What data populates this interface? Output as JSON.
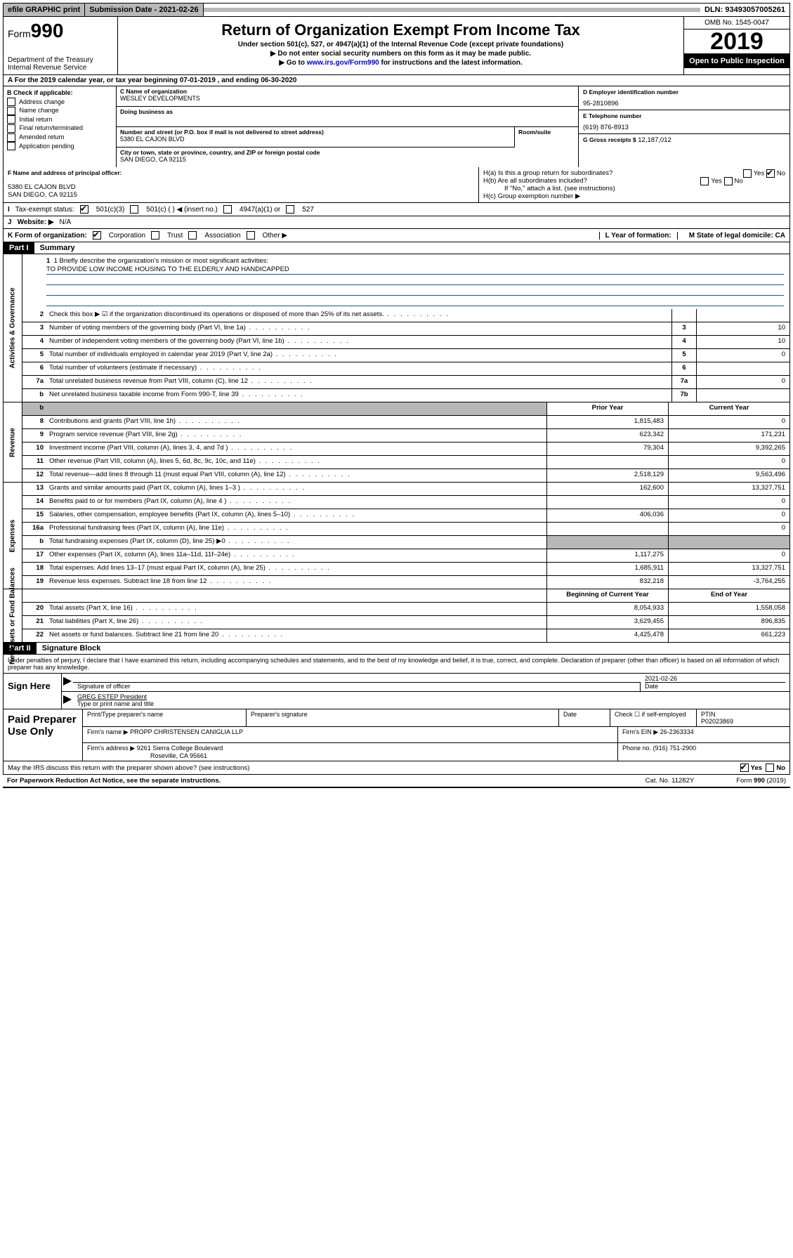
{
  "topbar": {
    "efile": "efile GRAPHIC print",
    "sub_label": "Submission Date - 2021-02-26",
    "dln": "DLN: 93493057005261"
  },
  "header": {
    "form_word": "Form",
    "form_num": "990",
    "dept": "Department of the Treasury\nInternal Revenue Service",
    "title": "Return of Organization Exempt From Income Tax",
    "subtitle": "Under section 501(c), 527, or 4947(a)(1) of the Internal Revenue Code (except private foundations)",
    "line1": "▶ Do not enter social security numbers on this form as it may be made public.",
    "line2_pre": "▶ Go to ",
    "line2_link": "www.irs.gov/Form990",
    "line2_post": " for instructions and the latest information.",
    "omb": "OMB No. 1545-0047",
    "year": "2019",
    "open": "Open to Public Inspection"
  },
  "period": {
    "text": "A   For the 2019 calendar year, or tax year beginning 07-01-2019     , and ending 06-30-2020"
  },
  "boxB": {
    "header": "B Check if applicable:",
    "items": [
      "Address change",
      "Name change",
      "Initial return",
      "Final return/terminated",
      "Amended return",
      "Application pending"
    ]
  },
  "boxC": {
    "name_label": "C Name of organization",
    "name": "WESLEY DEVELOPMENTS",
    "dba_label": "Doing business as",
    "addr_label": "Number and street (or P.O. box if mail is not delivered to street address)",
    "room_label": "Room/suite",
    "addr": "5380 EL CAJON BLVD",
    "city_label": "City or town, state or province, country, and ZIP or foreign postal code",
    "city": "SAN DIEGO, CA  92115"
  },
  "boxD": {
    "label": "D Employer identification number",
    "val": "95-2810896"
  },
  "boxE": {
    "label": "E Telephone number",
    "val": "(619) 876-8913"
  },
  "boxG": {
    "label": "G Gross receipts $",
    "val": "12,187,012"
  },
  "boxF": {
    "label": "F Name and address of principal officer:",
    "line1": "5380 EL CAJON BLVD",
    "line2": "SAN DIEGO, CA  92115"
  },
  "boxH": {
    "a": "H(a)  Is this a group return for subordinates?",
    "b": "H(b)  Are all subordinates included?",
    "bnote": "If \"No,\" attach a list. (see instructions)",
    "c": "H(c)  Group exemption number ▶"
  },
  "taxstatus": {
    "label": "Tax-exempt status:",
    "opts": [
      "501(c)(3)",
      "501(c) (  ) ◀ (insert no.)",
      "4947(a)(1) or",
      "527"
    ]
  },
  "website": {
    "label": "Website: ▶",
    "val": "N/A"
  },
  "kline": {
    "label": "K Form of organization:",
    "opts": [
      "Corporation",
      "Trust",
      "Association",
      "Other ▶"
    ],
    "l_label": "L Year of formation:",
    "m_label": "M State of legal domicile: CA"
  },
  "partI": {
    "tag": "Part I",
    "title": "Summary"
  },
  "mission": {
    "q": "1   Briefly describe the organization's mission or most significant activities:",
    "ans": "TO PROVIDE LOW INCOME HOUSING TO THE ELDERLY AND HANDICAPPED"
  },
  "gov_lines": [
    {
      "n": "2",
      "d": "Check this box ▶ ☑ if the organization discontinued its operations or disposed of more than 25% of its net assets.",
      "box": "",
      "v": ""
    },
    {
      "n": "3",
      "d": "Number of voting members of the governing body (Part VI, line 1a)",
      "box": "3",
      "v": "10"
    },
    {
      "n": "4",
      "d": "Number of independent voting members of the governing body (Part VI, line 1b)",
      "box": "4",
      "v": "10"
    },
    {
      "n": "5",
      "d": "Total number of individuals employed in calendar year 2019 (Part V, line 2a)",
      "box": "5",
      "v": "0"
    },
    {
      "n": "6",
      "d": "Total number of volunteers (estimate if necessary)",
      "box": "6",
      "v": ""
    },
    {
      "n": "7a",
      "d": "Total unrelated business revenue from Part VIII, column (C), line 12",
      "box": "7a",
      "v": "0"
    },
    {
      "n": "b",
      "d": "Net unrelated business taxable income from Form 990-T, line 39",
      "box": "7b",
      "v": ""
    }
  ],
  "rev_hdr": {
    "prior": "Prior Year",
    "curr": "Current Year"
  },
  "rev_lines": [
    {
      "n": "8",
      "d": "Contributions and grants (Part VIII, line 1h)",
      "p": "1,815,483",
      "c": "0"
    },
    {
      "n": "9",
      "d": "Program service revenue (Part VIII, line 2g)",
      "p": "623,342",
      "c": "171,231"
    },
    {
      "n": "10",
      "d": "Investment income (Part VIII, column (A), lines 3, 4, and 7d )",
      "p": "79,304",
      "c": "9,392,265"
    },
    {
      "n": "11",
      "d": "Other revenue (Part VIII, column (A), lines 5, 6d, 8c, 9c, 10c, and 11e)",
      "p": "",
      "c": "0"
    },
    {
      "n": "12",
      "d": "Total revenue—add lines 8 through 11 (must equal Part VIII, column (A), line 12)",
      "p": "2,518,129",
      "c": "9,563,496"
    }
  ],
  "exp_lines": [
    {
      "n": "13",
      "d": "Grants and similar amounts paid (Part IX, column (A), lines 1–3 )",
      "p": "162,600",
      "c": "13,327,751"
    },
    {
      "n": "14",
      "d": "Benefits paid to or for members (Part IX, column (A), line 4 )",
      "p": "",
      "c": "0"
    },
    {
      "n": "15",
      "d": "Salaries, other compensation, employee benefits (Part IX, column (A), lines 5–10)",
      "p": "406,036",
      "c": "0"
    },
    {
      "n": "16a",
      "d": "Professional fundraising fees (Part IX, column (A), line 11e)",
      "p": "",
      "c": "0"
    },
    {
      "n": "b",
      "d": "Total fundraising expenses (Part IX, column (D), line 25) ▶0",
      "p": "SHADE",
      "c": "SHADE"
    },
    {
      "n": "17",
      "d": "Other expenses (Part IX, column (A), lines 11a–11d, 11f–24e)",
      "p": "1,117,275",
      "c": "0"
    },
    {
      "n": "18",
      "d": "Total expenses. Add lines 13–17 (must equal Part IX, column (A), line 25)",
      "p": "1,685,911",
      "c": "13,327,751"
    },
    {
      "n": "19",
      "d": "Revenue less expenses. Subtract line 18 from line 12",
      "p": "832,218",
      "c": "-3,764,255"
    }
  ],
  "na_hdr": {
    "prior": "Beginning of Current Year",
    "curr": "End of Year"
  },
  "na_lines": [
    {
      "n": "20",
      "d": "Total assets (Part X, line 16)",
      "p": "8,054,933",
      "c": "1,558,058"
    },
    {
      "n": "21",
      "d": "Total liabilities (Part X, line 26)",
      "p": "3,629,455",
      "c": "896,835"
    },
    {
      "n": "22",
      "d": "Net assets or fund balances. Subtract line 21 from line 20",
      "p": "4,425,478",
      "c": "661,223"
    }
  ],
  "side_labels": {
    "gov": "Activities & Governance",
    "rev": "Revenue",
    "exp": "Expenses",
    "na": "Net Assets or Fund Balances"
  },
  "partII": {
    "tag": "Part II",
    "title": "Signature Block"
  },
  "perjury": "Under penalties of perjury, I declare that I have examined this return, including accompanying schedules and statements, and to the best of my knowledge and belief, it is true, correct, and complete. Declaration of preparer (other than officer) is based on all information of which preparer has any knowledge.",
  "sign": {
    "left": "Sign Here",
    "sig_of_officer": "Signature of officer",
    "date": "2021-02-26",
    "date_lbl": "Date",
    "name": "GREG ESTEP President",
    "name_lbl": "Type or print name and title"
  },
  "paid": {
    "left": "Paid Preparer Use Only",
    "h1": "Print/Type preparer's name",
    "h2": "Preparer's signature",
    "h3": "Date",
    "h4": "Check ☐ if self-employed",
    "h5": "PTIN",
    "ptin": "P02023869",
    "firm_name_lbl": "Firm's name      ▶",
    "firm_name": "PROPP CHRISTENSEN CANIGLIA LLP",
    "firm_ein_lbl": "Firm's EIN ▶",
    "firm_ein": "26-2363334",
    "firm_addr_lbl": "Firm's address ▶",
    "firm_addr": "9261 Sierra College Boulevard",
    "firm_city": "Roseville, CA  95661",
    "phone_lbl": "Phone no.",
    "phone": "(916) 751-2900"
  },
  "discuss": "May the IRS discuss this return with the preparer shown above? (see instructions)",
  "footer": {
    "pra": "For Paperwork Reduction Act Notice, see the separate instructions.",
    "cat": "Cat. No. 11282Y",
    "form": "Form 990 (2019)"
  }
}
